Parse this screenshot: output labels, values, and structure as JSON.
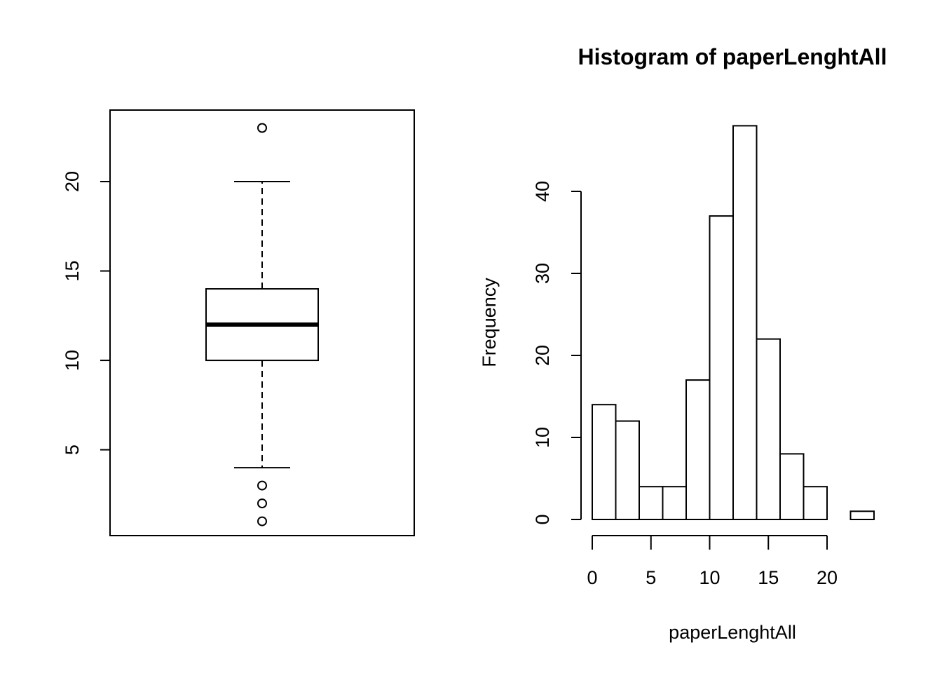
{
  "chart_data": [
    {
      "type": "boxplot",
      "title": "",
      "xlabel": "",
      "ylabel": "",
      "ylim": [
        0.2,
        24.0
      ],
      "yticks": [
        5,
        10,
        15,
        20
      ],
      "grid": false,
      "stats": {
        "whisker_low": 4,
        "q1": 10,
        "median": 12,
        "q3": 14,
        "whisker_high": 20
      },
      "outliers": [
        23,
        3,
        2,
        1
      ]
    },
    {
      "type": "bar",
      "subtype": "histogram",
      "title": "Histogram of paperLenghtAll",
      "xlabel": "paperLenghtAll",
      "ylabel": "Frequency",
      "xlim": [
        0,
        24
      ],
      "ylim": [
        0,
        48
      ],
      "xticks": [
        0,
        5,
        10,
        15,
        20
      ],
      "yticks": [
        0,
        10,
        20,
        30,
        40
      ],
      "grid": false,
      "bins": [
        {
          "from": 0,
          "to": 2,
          "count": 14
        },
        {
          "from": 2,
          "to": 4,
          "count": 12
        },
        {
          "from": 4,
          "to": 6,
          "count": 4
        },
        {
          "from": 6,
          "to": 8,
          "count": 4
        },
        {
          "from": 8,
          "to": 10,
          "count": 17
        },
        {
          "from": 10,
          "to": 12,
          "count": 37
        },
        {
          "from": 12,
          "to": 14,
          "count": 48
        },
        {
          "from": 14,
          "to": 16,
          "count": 22
        },
        {
          "from": 16,
          "to": 18,
          "count": 8
        },
        {
          "from": 18,
          "to": 20,
          "count": 4
        },
        {
          "from": 20,
          "to": 22,
          "count": 0
        },
        {
          "from": 22,
          "to": 24,
          "count": 1
        }
      ]
    }
  ]
}
